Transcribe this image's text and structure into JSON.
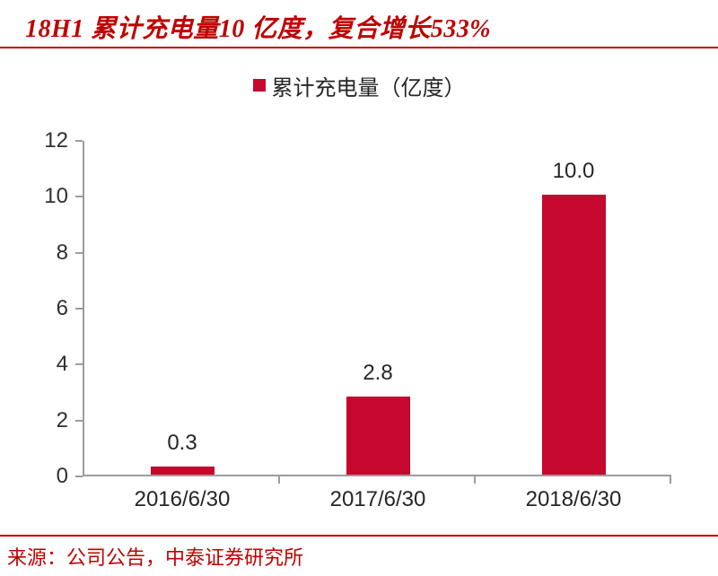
{
  "title": {
    "text": "18H1 累计充电量10 亿度，复合增长533%"
  },
  "legend": {
    "label": "累计充电量（亿度）"
  },
  "source": {
    "text": "来源：公司公告，中泰证券研究所"
  },
  "colors": {
    "bar_red": "#C6082E",
    "title_red": "#C00000",
    "rule_red": "#C00000",
    "axis_gray": "#9C9C9C"
  },
  "chart_data": {
    "type": "bar",
    "categories": [
      "2016/6/30",
      "2017/6/30",
      "2018/6/30"
    ],
    "values": [
      0.3,
      2.8,
      10.0
    ],
    "data_labels": [
      "0.3",
      "2.8",
      "10.0"
    ],
    "title": "18H1 累计充电量10 亿度，复合增长533%",
    "legend": [
      "累计充电量（亿度）"
    ],
    "xlabel": "",
    "ylabel": "",
    "ylim": [
      0,
      12
    ],
    "yticks": [
      0,
      2,
      4,
      6,
      8,
      10,
      12
    ],
    "grid": false,
    "legend_position": "top"
  }
}
